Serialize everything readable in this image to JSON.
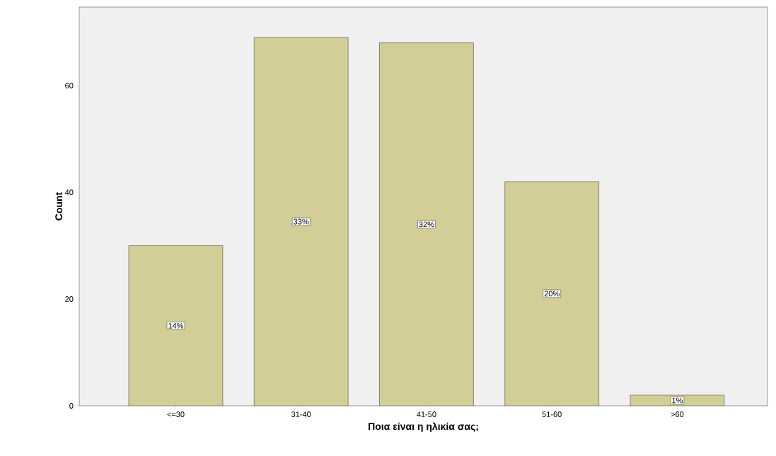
{
  "chart_data": {
    "type": "bar",
    "xlabel": "Ποια είναι η ηλικία σας;",
    "ylabel": "Count",
    "categories": [
      "<=30",
      "31-40",
      "41-50",
      "51-60",
      ">60"
    ],
    "values": [
      30,
      69,
      68,
      42,
      2
    ],
    "annotations": [
      {
        "text": "14%",
        "x": "<=30",
        "y": 15
      },
      {
        "text": "33%",
        "x": "31-40",
        "y": 34.5
      },
      {
        "text": "32%",
        "x": "41-50",
        "y": 34
      },
      {
        "text": "20%",
        "x": "51-60",
        "y": 21
      },
      {
        "text": "1%",
        "x": ">60",
        "y": 1
      }
    ],
    "color": "#d3ce97",
    "ylim": [
      0,
      74.7
    ],
    "yticks": [
      0,
      20,
      40,
      60
    ],
    "grid": false
  }
}
